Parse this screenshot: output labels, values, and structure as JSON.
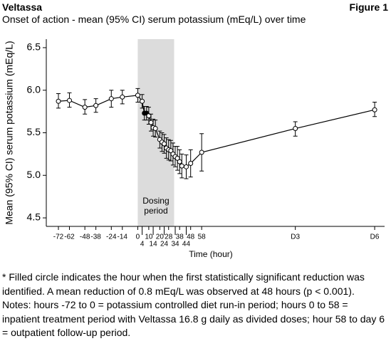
{
  "header": {
    "brand": "Veltassa",
    "figure": "Figure 1"
  },
  "chart_data": {
    "type": "line",
    "title": "Onset of action - mean (95% CI) serum potassium (mEq/L) over time",
    "x_label": "Time (hour)",
    "y_label": "Mean (95% CI) serum potassium (mEq/L)",
    "x": [
      -72,
      -62,
      -48,
      -38,
      -24,
      -14,
      0,
      4,
      6,
      8,
      10,
      12,
      14,
      16,
      20,
      22,
      24,
      26,
      28,
      30,
      32,
      34,
      36,
      38,
      40,
      44,
      48,
      58,
      143,
      215
    ],
    "values": [
      5.87,
      5.88,
      5.8,
      5.82,
      5.9,
      5.92,
      5.94,
      5.87,
      5.73,
      5.73,
      5.7,
      5.62,
      5.56,
      5.55,
      5.42,
      5.39,
      5.37,
      5.32,
      5.3,
      5.29,
      5.25,
      5.22,
      5.2,
      5.16,
      5.11,
      5.1,
      5.14,
      5.27,
      5.55,
      5.77
    ],
    "ci_low": [
      5.79,
      5.8,
      5.72,
      5.74,
      5.8,
      5.84,
      5.86,
      5.79,
      5.65,
      5.65,
      5.6,
      5.52,
      5.46,
      5.45,
      5.32,
      5.28,
      5.26,
      5.2,
      5.18,
      5.17,
      5.12,
      5.1,
      5.06,
      5.02,
      4.97,
      4.96,
      4.98,
      5.05,
      5.46,
      5.69
    ],
    "ci_high": [
      5.96,
      5.97,
      5.89,
      5.9,
      6.0,
      6.0,
      6.02,
      5.95,
      5.81,
      5.81,
      5.8,
      5.72,
      5.66,
      5.65,
      5.52,
      5.5,
      5.48,
      5.44,
      5.42,
      5.41,
      5.38,
      5.34,
      5.34,
      5.3,
      5.25,
      5.24,
      5.3,
      5.49,
      5.63,
      5.86
    ],
    "marker_filled": [
      false,
      false,
      false,
      false,
      false,
      false,
      false,
      false,
      true,
      true,
      false,
      false,
      false,
      false,
      false,
      false,
      false,
      false,
      false,
      false,
      false,
      false,
      false,
      false,
      false,
      false,
      false,
      false,
      false,
      false
    ],
    "color": "#000000",
    "xlim": [
      -83,
      224
    ],
    "ylim": [
      4.4,
      6.6
    ],
    "xticks": [
      -72,
      -62,
      -48,
      -38,
      -24,
      -14,
      0,
      4,
      10,
      14,
      20,
      24,
      28,
      34,
      38,
      44,
      48,
      58,
      {
        "value": 143,
        "label": "D3"
      },
      {
        "value": 215,
        "label": "D6"
      }
    ],
    "yticks": [
      4.5,
      {
        "value": 5,
        "label": "5.0"
      },
      5.5,
      {
        "value": 6,
        "label": "6.0"
      },
      6.5
    ],
    "shade": {
      "from": 0,
      "to": 33,
      "color": "#dcdcdc",
      "label_lines": [
        "Dosing",
        "period"
      ]
    }
  },
  "footnotes": [
    "* Filled circle indicates the hour when the first statistically significant reduction was identified. A mean reduction of 0.8 mEq/L was observed at 48 hours (p < 0.001).",
    "Notes: hours -72 to 0 = potassium controlled diet run-in period; hours 0 to 58 = inpatient treatment period with Veltassa 16.8 g daily as divided doses; hour 58 to day 6 = outpatient follow-up period."
  ]
}
